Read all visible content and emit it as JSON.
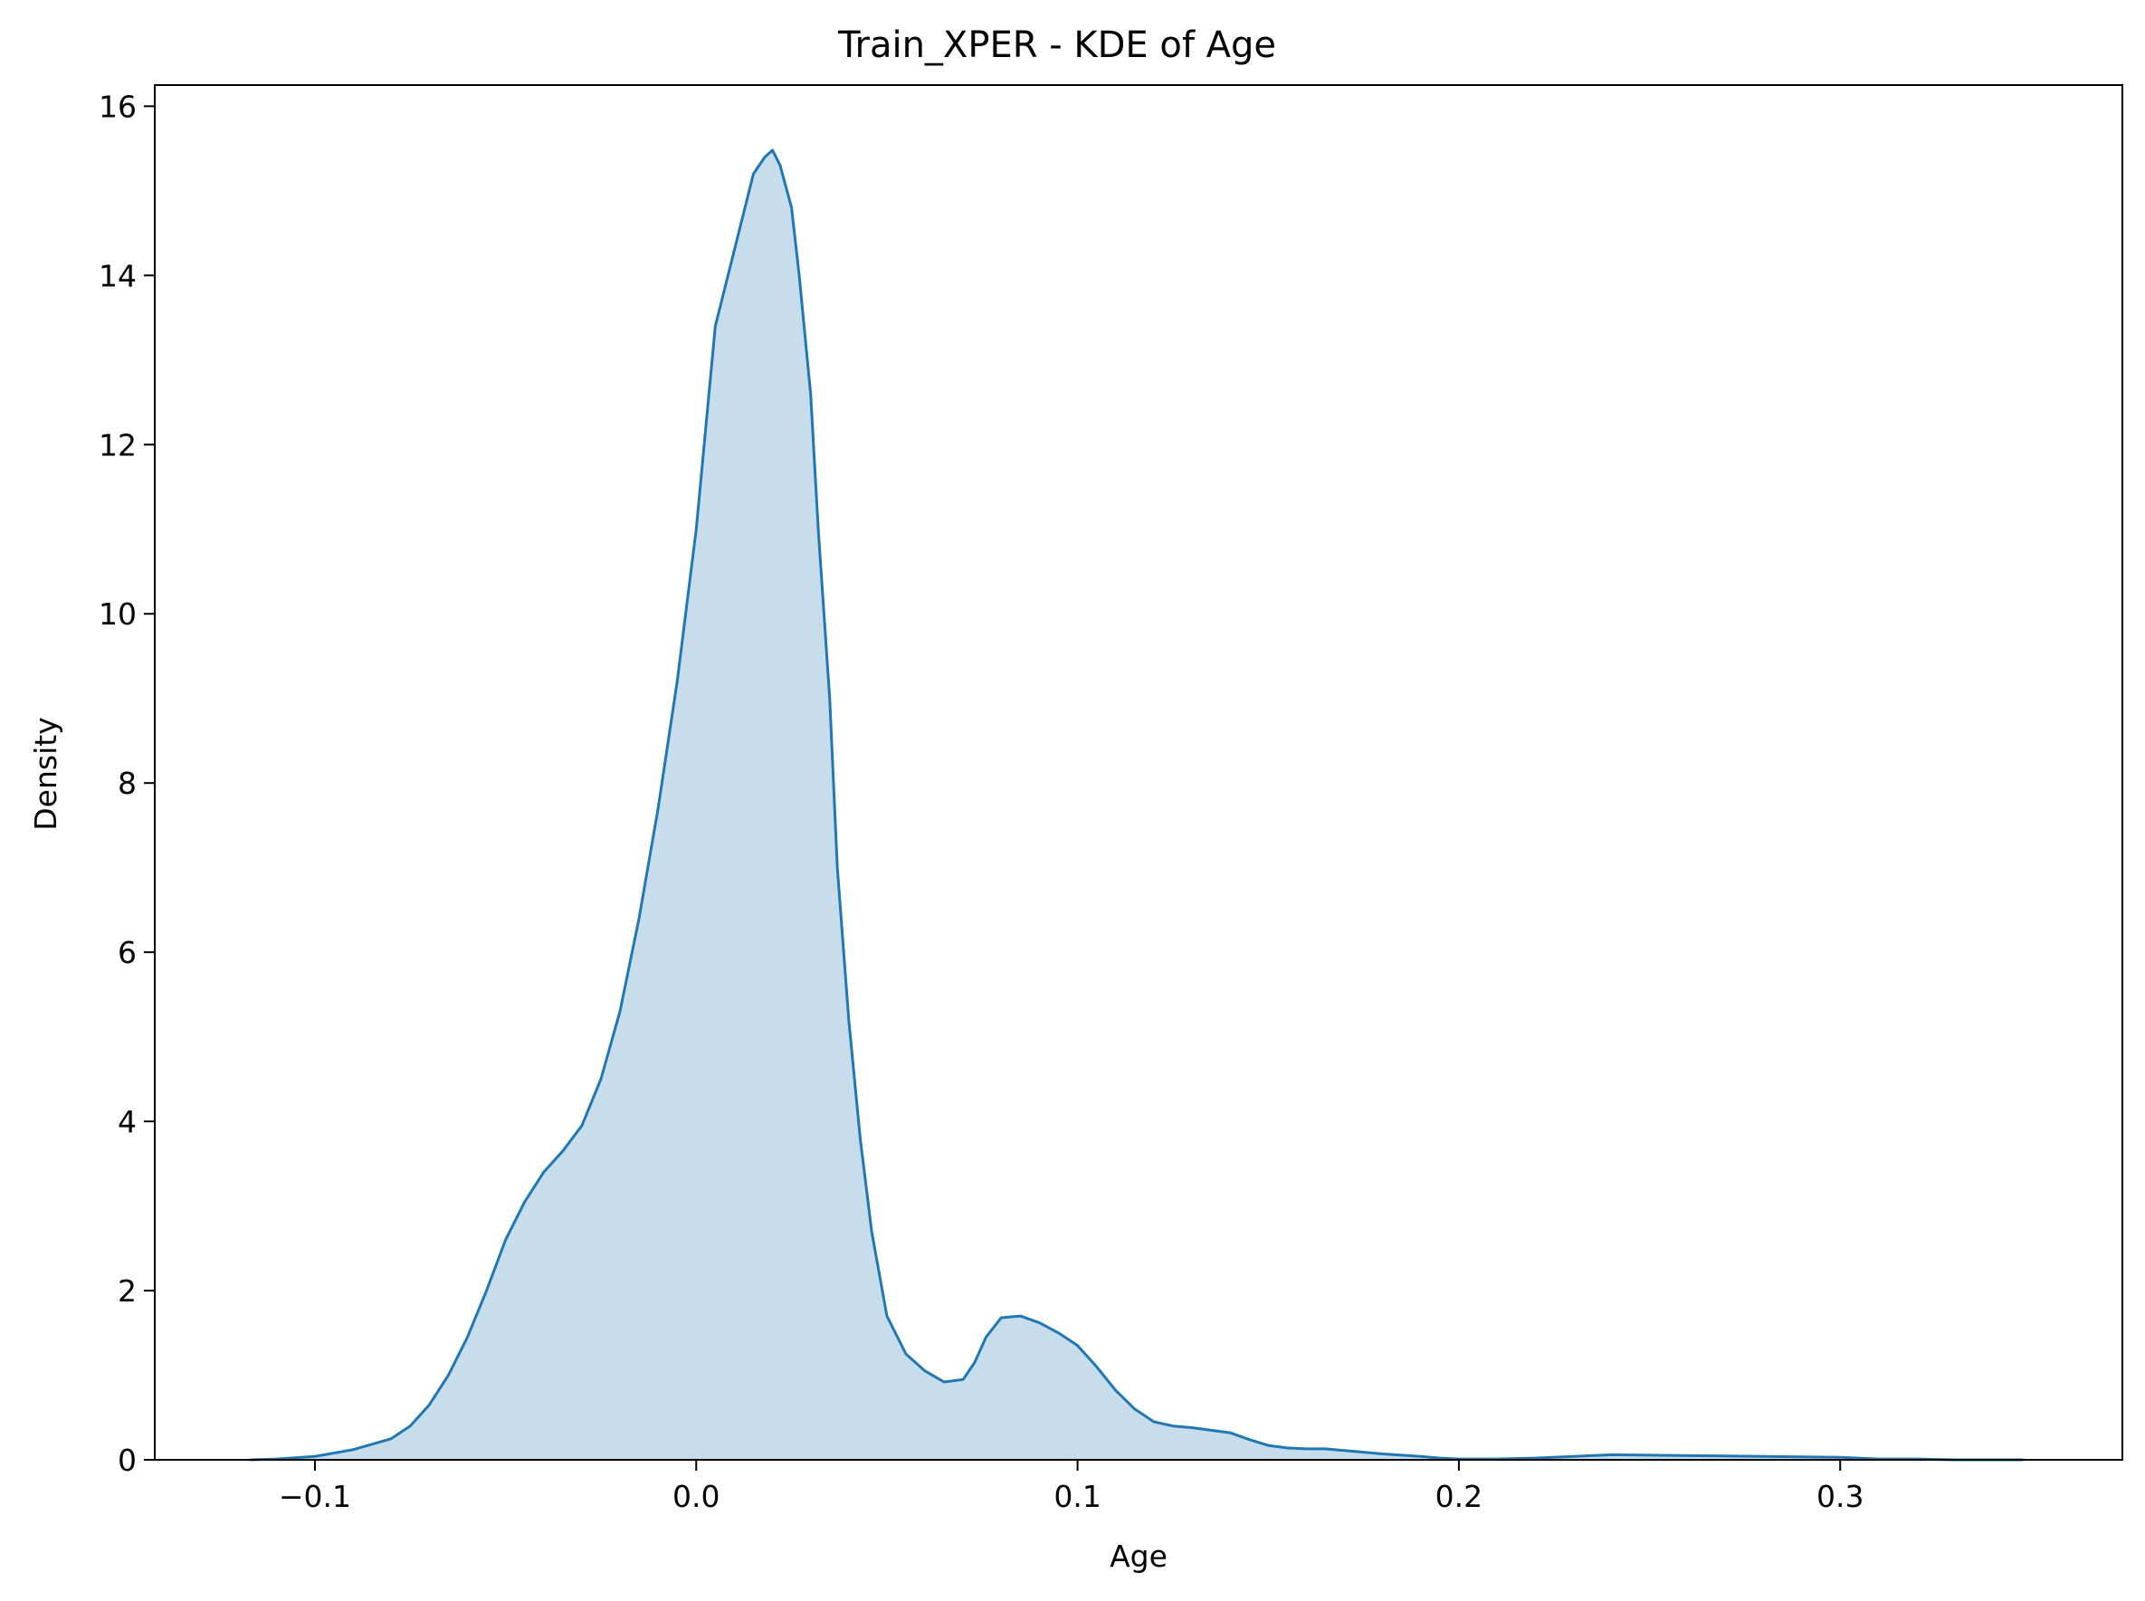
{
  "chart_data": {
    "type": "area",
    "title": "Train_XPER - KDE of Age",
    "xlabel": "Age",
    "ylabel": "Density",
    "xlim": [
      -0.142,
      0.374
    ],
    "ylim": [
      0,
      16.25
    ],
    "xticks": [
      -0.1,
      0.0,
      0.1,
      0.2,
      0.3
    ],
    "xtick_labels": [
      "−0.1",
      "0.0",
      "0.1",
      "0.2",
      "0.3"
    ],
    "yticks": [
      0,
      2,
      4,
      6,
      8,
      10,
      12,
      14,
      16
    ],
    "ytick_labels": [
      "0",
      "2",
      "4",
      "6",
      "8",
      "10",
      "12",
      "14",
      "16"
    ],
    "grid": false,
    "colors": {
      "line": "#1f77b4",
      "fill": "#1f77b4",
      "fill_opacity": 0.25
    },
    "series": [
      {
        "x": [
          -0.117,
          -0.11,
          -0.1,
          -0.09,
          -0.08,
          -0.075,
          -0.07,
          -0.065,
          -0.06,
          -0.055,
          -0.05,
          -0.045,
          -0.04,
          -0.035,
          -0.03,
          -0.025,
          -0.02,
          -0.015,
          -0.01,
          -0.005,
          0.0,
          0.005,
          0.01,
          0.015,
          0.018,
          0.02,
          0.022,
          0.025,
          0.027,
          0.03,
          0.032,
          0.035,
          0.037,
          0.04,
          0.043,
          0.046,
          0.05,
          0.055,
          0.06,
          0.065,
          0.07,
          0.073,
          0.076,
          0.08,
          0.085,
          0.09,
          0.095,
          0.1,
          0.105,
          0.11,
          0.115,
          0.12,
          0.125,
          0.13,
          0.14,
          0.145,
          0.15,
          0.155,
          0.16,
          0.165,
          0.17,
          0.18,
          0.19,
          0.195,
          0.2,
          0.21,
          0.22,
          0.23,
          0.24,
          0.26,
          0.3,
          0.31,
          0.32,
          0.33,
          0.34,
          0.348
        ],
        "y": [
          0.0,
          0.01,
          0.04,
          0.12,
          0.25,
          0.4,
          0.65,
          1.0,
          1.45,
          2.0,
          2.6,
          3.05,
          3.4,
          3.65,
          3.95,
          4.5,
          5.3,
          6.4,
          7.7,
          9.2,
          11.0,
          13.4,
          14.3,
          15.2,
          15.4,
          15.48,
          15.3,
          14.8,
          14.0,
          12.6,
          11.0,
          9.0,
          7.0,
          5.2,
          3.8,
          2.7,
          1.7,
          1.25,
          1.05,
          0.92,
          0.95,
          1.15,
          1.45,
          1.68,
          1.7,
          1.62,
          1.5,
          1.35,
          1.1,
          0.82,
          0.6,
          0.45,
          0.4,
          0.38,
          0.32,
          0.24,
          0.17,
          0.14,
          0.13,
          0.13,
          0.11,
          0.07,
          0.04,
          0.02,
          0.01,
          0.01,
          0.02,
          0.04,
          0.06,
          0.05,
          0.03,
          0.01,
          0.01,
          0.0,
          0.0,
          0.0
        ]
      }
    ]
  }
}
